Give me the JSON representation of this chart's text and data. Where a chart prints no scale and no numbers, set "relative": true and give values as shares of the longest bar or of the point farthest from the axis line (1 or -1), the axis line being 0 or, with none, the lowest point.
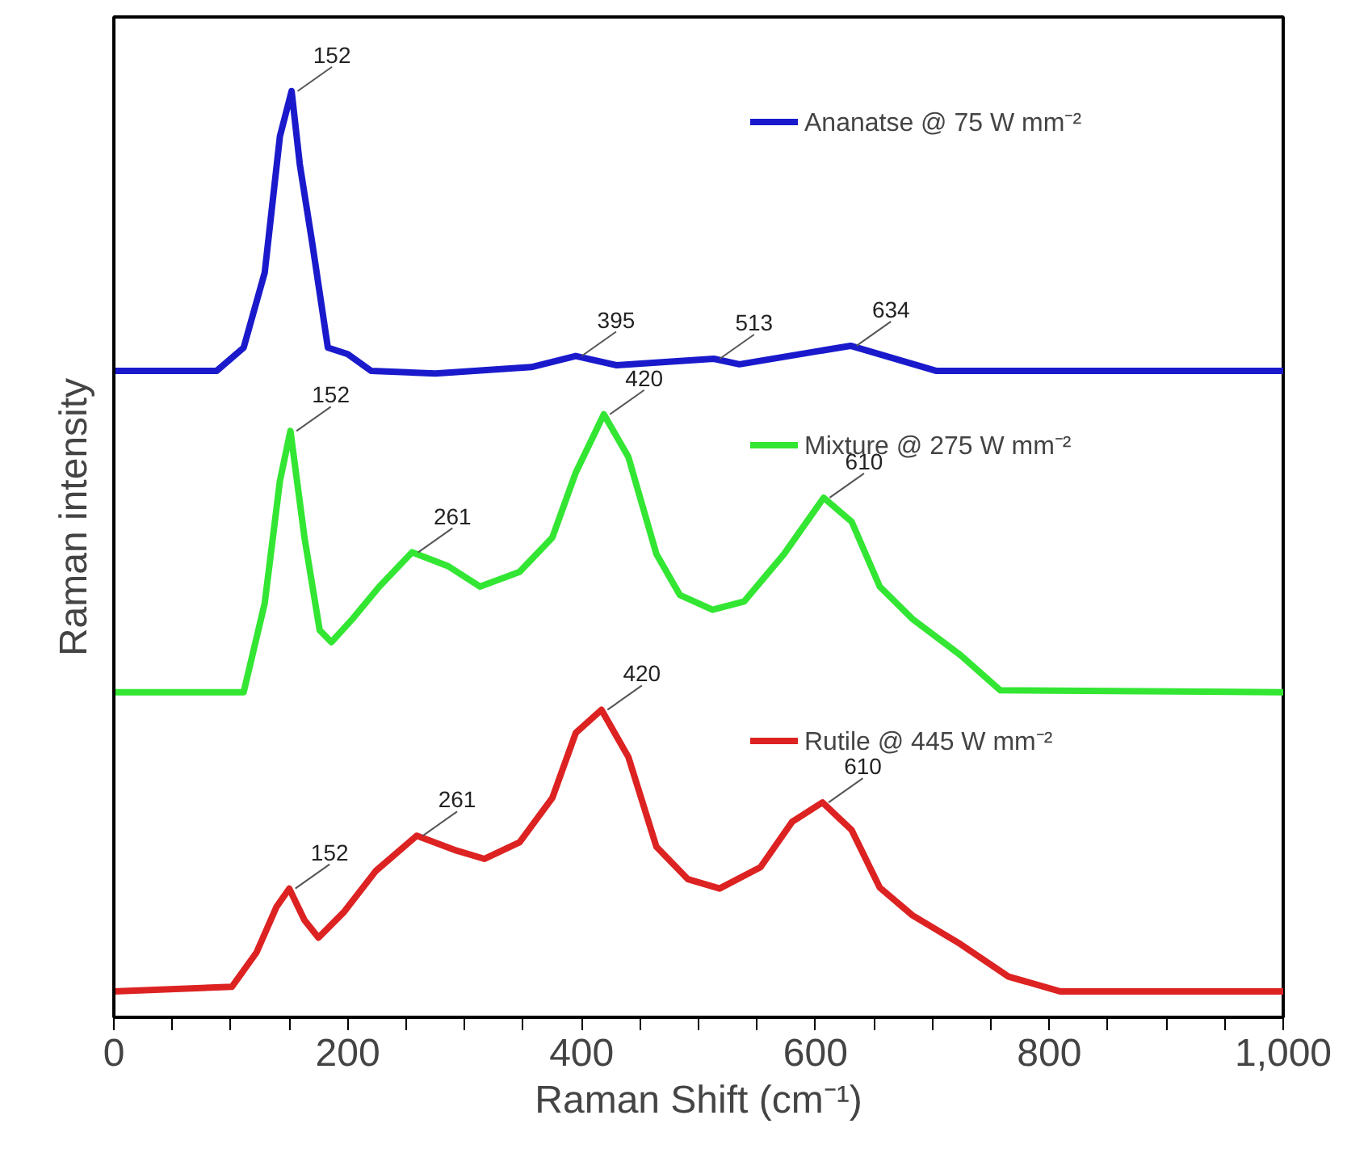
{
  "chart_data": {
    "type": "line",
    "relative": true,
    "xlabel": "Raman Shift (cm⁻¹)",
    "ylabel": "Raman intensity",
    "xlim": [
      0,
      1000
    ],
    "xticks": [
      0,
      {
        "value": 50,
        "label": null
      },
      200,
      {
        "value": 100,
        "label": null
      },
      {
        "value": 150,
        "label": null
      },
      {
        "value": 250,
        "label": null
      },
      {
        "value": 300,
        "label": null
      },
      {
        "value": 350,
        "label": null
      },
      400,
      {
        "value": 450,
        "label": null
      },
      {
        "value": 500,
        "label": null
      },
      {
        "value": 550,
        "label": null
      },
      600,
      {
        "value": 650,
        "label": null
      },
      {
        "value": 700,
        "label": null
      },
      {
        "value": 750,
        "label": null
      },
      800,
      {
        "value": 850,
        "label": null
      },
      {
        "value": 900,
        "label": null
      },
      {
        "value": 950,
        "label": null
      },
      {
        "value": 1000,
        "label": "1,000"
      }
    ],
    "grid": false,
    "legend": "right",
    "line_style": "solid",
    "marker": "none",
    "series": [
      {
        "name": "Ananatse @ 75 W mm⁻²",
        "color": "#1a1acc",
        "x": [
          0,
          88,
          111,
          129,
          142,
          152,
          159,
          170,
          183,
          200,
          220,
          275,
          357,
          395,
          430,
          513,
          535,
          630,
          703,
          1000
        ],
        "values": [
          0.698,
          0.698,
          0.723,
          0.804,
          0.951,
          1.0,
          0.921,
          0.833,
          0.723,
          0.716,
          0.698,
          0.695,
          0.702,
          0.714,
          0.704,
          0.711,
          0.705,
          0.725,
          0.698,
          0.698
        ]
      },
      {
        "name": "Mixture @ 275 W mm⁻²",
        "color": "#33e633",
        "x": [
          0,
          111,
          129,
          142,
          151,
          163,
          176,
          186,
          204,
          227,
          255,
          286,
          313,
          347,
          375,
          395,
          419,
          440,
          464,
          484,
          512,
          539,
          573,
          607,
          631,
          655,
          683,
          724,
          758,
          1000
        ],
        "values": [
          0.351,
          0.351,
          0.447,
          0.579,
          0.633,
          0.518,
          0.418,
          0.405,
          0.43,
          0.465,
          0.502,
          0.487,
          0.465,
          0.481,
          0.518,
          0.588,
          0.651,
          0.605,
          0.5,
          0.456,
          0.44,
          0.449,
          0.5,
          0.561,
          0.535,
          0.465,
          0.43,
          0.391,
          0.353,
          0.351
        ]
      },
      {
        "name": "Rutile @ 445 W mm⁻²",
        "color": "#dd2222",
        "x": [
          0,
          101,
          122,
          139,
          150,
          163,
          175,
          197,
          224,
          259,
          293,
          317,
          347,
          375,
          395,
          417,
          440,
          464,
          491,
          518,
          553,
          580,
          606,
          631,
          655,
          683,
          724,
          765,
          809,
          1000
        ],
        "values": [
          0.028,
          0.033,
          0.07,
          0.119,
          0.139,
          0.105,
          0.086,
          0.114,
          0.158,
          0.196,
          0.18,
          0.171,
          0.189,
          0.237,
          0.307,
          0.332,
          0.281,
          0.184,
          0.149,
          0.139,
          0.162,
          0.211,
          0.232,
          0.202,
          0.14,
          0.11,
          0.079,
          0.044,
          0.028,
          0.028
        ]
      }
    ],
    "annotations": [
      {
        "text": "152",
        "x": 152,
        "y": 1.0
      },
      {
        "text": "395",
        "x": 395,
        "y": 0.714
      },
      {
        "text": "513",
        "x": 513,
        "y": 0.711
      },
      {
        "text": "634",
        "x": 630,
        "y": 0.725
      },
      {
        "text": "152",
        "x": 151,
        "y": 0.633
      },
      {
        "text": "261",
        "x": 255,
        "y": 0.502
      },
      {
        "text": "420",
        "x": 419,
        "y": 0.651
      },
      {
        "text": "610",
        "x": 607,
        "y": 0.561
      },
      {
        "text": "152",
        "x": 150,
        "y": 0.139
      },
      {
        "text": "261",
        "x": 259,
        "y": 0.196
      },
      {
        "text": "420",
        "x": 417,
        "y": 0.332
      },
      {
        "text": "610",
        "x": 606,
        "y": 0.232
      }
    ]
  }
}
